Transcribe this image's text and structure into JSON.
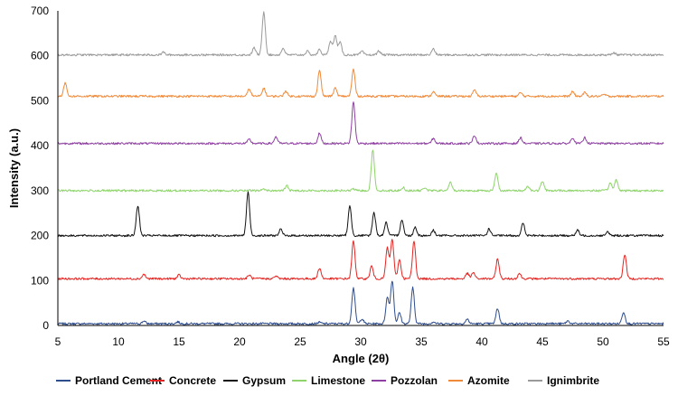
{
  "chart_data": {
    "type": "line",
    "title": "",
    "xlabel": "Angle (2θ)",
    "ylabel": "Intensity (a.u.)",
    "xlim": [
      5,
      55
    ],
    "ylim": [
      0,
      700
    ],
    "x_ticks": [
      5,
      10,
      15,
      20,
      25,
      30,
      35,
      40,
      45,
      50,
      55
    ],
    "y_ticks": [
      0,
      100,
      200,
      300,
      400,
      500,
      600,
      700
    ],
    "grid": false,
    "legend_position": "bottom",
    "series": [
      {
        "name": "Portland Cement",
        "color": "#2e4d8c",
        "baseline": 4,
        "peaks": [
          [
            12.1,
            10
          ],
          [
            14.9,
            8
          ],
          [
            20.8,
            4
          ],
          [
            26.6,
            7
          ],
          [
            29.4,
            84
          ],
          [
            30.1,
            15
          ],
          [
            32.2,
            62
          ],
          [
            32.6,
            100
          ],
          [
            33.2,
            28
          ],
          [
            34.3,
            84
          ],
          [
            36.0,
            8
          ],
          [
            38.8,
            14
          ],
          [
            41.3,
            38
          ],
          [
            45.6,
            6
          ],
          [
            47.1,
            10
          ],
          [
            51.7,
            30
          ]
        ]
      },
      {
        "name": "Concrete",
        "color": "#e52421",
        "baseline": 104,
        "peaks": [
          [
            12.1,
            114
          ],
          [
            15.0,
            112
          ],
          [
            20.8,
            112
          ],
          [
            23.0,
            110
          ],
          [
            26.6,
            128
          ],
          [
            29.4,
            188
          ],
          [
            30.9,
            132
          ],
          [
            32.2,
            172
          ],
          [
            32.6,
            192
          ],
          [
            33.2,
            146
          ],
          [
            34.4,
            188
          ],
          [
            38.8,
            116
          ],
          [
            39.3,
            118
          ],
          [
            41.3,
            148
          ],
          [
            43.1,
            116
          ],
          [
            51.8,
            158
          ]
        ]
      },
      {
        "name": "Gypsum",
        "color": "#111111",
        "baseline": 200,
        "peaks": [
          [
            11.6,
            267
          ],
          [
            20.7,
            296
          ],
          [
            23.4,
            214
          ],
          [
            29.1,
            265
          ],
          [
            31.1,
            251
          ],
          [
            32.1,
            229
          ],
          [
            33.4,
            236
          ],
          [
            34.5,
            219
          ],
          [
            36.0,
            212
          ],
          [
            40.6,
            215
          ],
          [
            43.4,
            227
          ],
          [
            47.9,
            212
          ],
          [
            50.4,
            208
          ]
        ]
      },
      {
        "name": "Limestone",
        "color": "#8ed46b",
        "baseline": 300,
        "peaks": [
          [
            22.0,
            304
          ],
          [
            23.9,
            311
          ],
          [
            29.4,
            304
          ],
          [
            31.0,
            390
          ],
          [
            33.5,
            307
          ],
          [
            35.3,
            307
          ],
          [
            37.4,
            318
          ],
          [
            41.2,
            339
          ],
          [
            43.8,
            310
          ],
          [
            45.0,
            321
          ],
          [
            50.6,
            317
          ],
          [
            51.1,
            324
          ]
        ]
      },
      {
        "name": "Pozzolan",
        "color": "#8e3fa1",
        "baseline": 405,
        "peaks": [
          [
            20.8,
            414
          ],
          [
            23.0,
            420
          ],
          [
            26.6,
            428
          ],
          [
            29.4,
            497
          ],
          [
            36.0,
            416
          ],
          [
            39.4,
            423
          ],
          [
            43.2,
            418
          ],
          [
            47.5,
            418
          ],
          [
            48.5,
            418
          ]
        ]
      },
      {
        "name": "Azomite",
        "color": "#f08a3a",
        "baseline": 510,
        "peaks": [
          [
            5.6,
            540
          ],
          [
            20.8,
            526
          ],
          [
            22.0,
            528
          ],
          [
            23.8,
            522
          ],
          [
            26.6,
            568
          ],
          [
            27.9,
            528
          ],
          [
            29.4,
            570
          ],
          [
            36.0,
            520
          ],
          [
            39.4,
            524
          ],
          [
            43.2,
            518
          ],
          [
            47.5,
            520
          ],
          [
            48.5,
            518
          ],
          [
            50.1,
            514
          ]
        ]
      },
      {
        "name": "Ignimbrite",
        "color": "#9a9a9a",
        "baseline": 602,
        "peaks": [
          [
            13.7,
            608
          ],
          [
            21.2,
            618
          ],
          [
            22.0,
            698
          ],
          [
            23.6,
            617
          ],
          [
            25.6,
            610
          ],
          [
            26.6,
            614
          ],
          [
            27.5,
            633
          ],
          [
            27.9,
            645
          ],
          [
            28.3,
            630
          ],
          [
            30.1,
            610
          ],
          [
            31.5,
            611
          ],
          [
            36.0,
            616
          ],
          [
            50.9,
            607
          ]
        ]
      }
    ]
  }
}
